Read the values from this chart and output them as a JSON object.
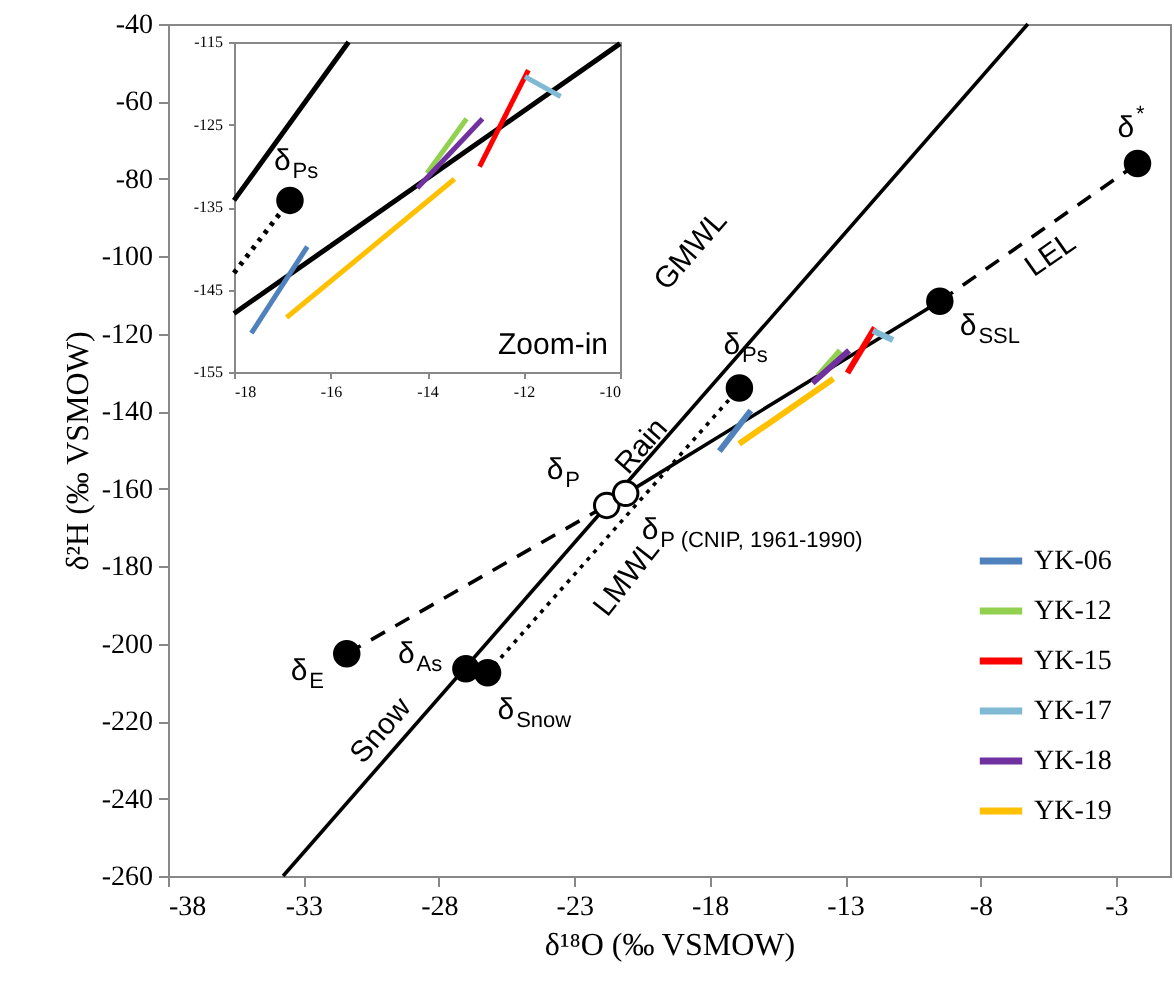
{
  "chart_data": [
    {
      "type": "line",
      "xlabel": "δ¹⁸O (‰ VSMOW)",
      "ylabel": "δ²H (‰ VSMOW)",
      "xlim": [
        -38,
        -1
      ],
      "ylim": [
        -260,
        -40
      ],
      "xticks": [
        -38,
        -33,
        -28,
        -23,
        -18,
        -13,
        -8,
        -3
      ],
      "yticks": [
        -260,
        -240,
        -220,
        -200,
        -180,
        -160,
        -140,
        -120,
        -100,
        -80,
        -60,
        -40
      ],
      "legend": "bottom right",
      "series": [
        {
          "x": [
            -33.75,
            -6.25
          ],
          "values": [
            -260,
            -40
          ],
          "color": "#000000",
          "line_style": "solid"
        },
        {
          "x": [
            -21.8,
            -9.5
          ],
          "values": [
            -164.3,
            -111.6
          ],
          "color": "#000000",
          "line_style": "solid"
        },
        {
          "x": [
            -31.4,
            -21.8
          ],
          "values": [
            -202.6,
            -164.3
          ],
          "color": "#000000",
          "line_style": "dashed"
        },
        {
          "x": [
            -9.5,
            -2.2
          ],
          "values": [
            -111.6,
            -76
          ],
          "color": "#000000",
          "line_style": "dashed"
        },
        {
          "x": [
            -26.2,
            -16.9
          ],
          "values": [
            -207.5,
            -134
          ],
          "color": "#000000",
          "line_style": "dotted"
        },
        {
          "name": "YK-06",
          "x": [
            -17.64,
            -16.48
          ],
          "values": [
            -150.3,
            -139.8
          ],
          "color": "#4f81bd",
          "line_style": "solid"
        },
        {
          "name": "YK-12",
          "x": [
            -14.0,
            -13.18
          ],
          "values": [
            -130.9,
            -124.3
          ],
          "color": "#92d050",
          "line_style": "solid"
        },
        {
          "name": "YK-15",
          "x": [
            -12.91,
            -11.9
          ],
          "values": [
            -130.1,
            -118.4
          ],
          "color": "#ff0000",
          "line_style": "solid"
        },
        {
          "name": "YK-17",
          "x": [
            -11.97,
            -11.23
          ],
          "values": [
            -119.2,
            -121.6
          ],
          "color": "#7fb9d4",
          "line_style": "solid"
        },
        {
          "name": "YK-18",
          "x": [
            -14.2,
            -12.85
          ],
          "values": [
            -132.7,
            -124.3
          ],
          "color": "#7030a0",
          "line_style": "solid"
        },
        {
          "name": "YK-19",
          "x": [
            -16.91,
            -13.43
          ],
          "values": [
            -148.4,
            -131.6
          ],
          "color": "#ffc000",
          "line_style": "solid"
        },
        {
          "type": "scatter",
          "x": [
            -31.4,
            -27.0,
            -26.2,
            -16.9,
            -9.5,
            -2.2
          ],
          "values": [
            -202.6,
            -206.5,
            -207.5,
            -134,
            -111.6,
            -76
          ],
          "color": "#000000",
          "marker": "circle"
        },
        {
          "type": "scatter",
          "x": [
            -21.8,
            -21.1
          ],
          "values": [
            -164.3,
            -161.2
          ],
          "color": "#ffffff",
          "marker": "circle"
        }
      ],
      "annotations": [
        "GMWL",
        "LEL",
        {
          "text": "LMWL",
          "x": -22.2,
          "y": -179.5
        },
        {
          "text": "Rain",
          "x": -19.9,
          "y": -150
        },
        "Snow",
        {
          "text": "δ$^{*}$",
          "x": -2.2,
          "y": -76
        },
        {
          "text": "δ$_{SSL}$",
          "x": -9.5,
          "y": -111.6
        },
        {
          "text": "δ$_{Ps}$",
          "x": -16.9,
          "y": -134
        },
        {
          "text": "δ$_{P}$",
          "x": -21.8,
          "y": -164.3
        },
        {
          "text": "δ$_{P (CNIP, 1961-1990)}$",
          "x": -21.1,
          "y": -161.2
        },
        {
          "text": "δ$_{E}$",
          "x": -31.4,
          "y": -202.6
        },
        {
          "text": "δ$_{As}$",
          "x": -27.0,
          "y": -206.5
        },
        {
          "text": "δ$_{Snow}$",
          "x": -26.2,
          "y": -207.5
        }
      ]
    },
    {
      "type": "line",
      "xlim": [
        -18,
        -10
      ],
      "ylim": [
        -155,
        -115
      ],
      "xticks": [
        -18,
        -16,
        -14,
        -12,
        -10
      ],
      "yticks": [
        -155,
        -145,
        -135,
        -125,
        -115
      ],
      "series": [
        {
          "x": [
            -18,
            -15.625
          ],
          "values": [
            -134.2,
            -115
          ],
          "color": "#000000",
          "line_style": "solid"
        },
        {
          "x": [
            -18,
            -10
          ],
          "values": [
            -147.9,
            -115.2
          ],
          "color": "#000000",
          "line_style": "solid"
        },
        {
          "x": [
            -18,
            -16.84
          ],
          "values": [
            -143,
            -134.2
          ],
          "color": "#000000",
          "line_style": "dotted"
        },
        {
          "x": [
            -17.64,
            -16.48
          ],
          "values": [
            -150.3,
            -139.8
          ],
          "color": "#4f81bd",
          "line_style": "solid"
        },
        {
          "x": [
            -14.0,
            -13.18
          ],
          "values": [
            -130.9,
            -124.3
          ],
          "color": "#92d050",
          "line_style": "solid"
        },
        {
          "x": [
            -12.91,
            -11.9
          ],
          "values": [
            -130.1,
            -118.4
          ],
          "color": "#ff0000",
          "line_style": "solid"
        },
        {
          "x": [
            -11.97,
            -11.23
          ],
          "values": [
            -119.2,
            -121.6
          ],
          "color": "#7fb9d4",
          "line_style": "solid"
        },
        {
          "x": [
            -14.2,
            -12.85
          ],
          "values": [
            -132.7,
            -124.3
          ],
          "color": "#7030a0",
          "line_style": "solid"
        },
        {
          "x": [
            -16.91,
            -13.43
          ],
          "values": [
            -148.4,
            -131.6
          ],
          "color": "#ffc000",
          "line_style": "solid"
        },
        {
          "type": "scatter",
          "x": [
            -16.84
          ],
          "values": [
            -134.2
          ],
          "color": "#000000",
          "marker": "circle"
        }
      ],
      "annotations": [
        {
          "text": "δ$_{Ps}$",
          "x": -16.84,
          "y": -134.2
        },
        "Zoom-in"
      ]
    }
  ]
}
